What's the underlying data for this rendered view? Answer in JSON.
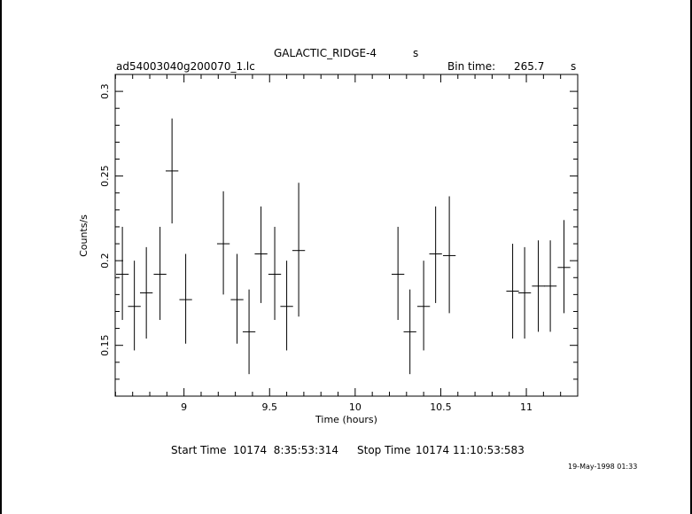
{
  "header": {
    "object_name": "GALACTIC_RIDGE-4",
    "object_suffix": "s",
    "file_name": "ad54003040g200070_1.lc",
    "bin_label": "Bin time:",
    "bin_value": "265.7",
    "bin_unit": "s"
  },
  "footer": {
    "start_label": "Start Time",
    "start_value": "10174  8:35:53:314",
    "stop_label": "Stop Time",
    "stop_value": "10174 11:10:53:583",
    "timestamp": "19-May-1998 01:33"
  },
  "chart_data": {
    "type": "scatter",
    "title": "GALACTIC_RIDGE-4",
    "xlabel": "Time (hours)",
    "ylabel": "Counts/s",
    "xlim": [
      8.598,
      11.3
    ],
    "ylim": [
      0.12,
      0.31
    ],
    "x_ticks": [
      "9",
      "9.5",
      "10",
      "10.5",
      "11"
    ],
    "y_ticks": [
      "0.15",
      "0.2",
      "0.25",
      "0.3"
    ],
    "grid": false,
    "legend": "none",
    "points": [
      {
        "x": 8.64,
        "xerr": 0.037,
        "y": 0.192,
        "ylo": 0.165,
        "yhi": 0.22
      },
      {
        "x": 8.71,
        "xerr": 0.037,
        "y": 0.173,
        "ylo": 0.147,
        "yhi": 0.2
      },
      {
        "x": 8.78,
        "xerr": 0.037,
        "y": 0.181,
        "ylo": 0.154,
        "yhi": 0.208
      },
      {
        "x": 8.86,
        "xerr": 0.037,
        "y": 0.192,
        "ylo": 0.165,
        "yhi": 0.22
      },
      {
        "x": 8.93,
        "xerr": 0.037,
        "y": 0.253,
        "ylo": 0.222,
        "yhi": 0.284
      },
      {
        "x": 9.01,
        "xerr": 0.037,
        "y": 0.177,
        "ylo": 0.151,
        "yhi": 0.204
      },
      {
        "x": 9.23,
        "xerr": 0.037,
        "y": 0.21,
        "ylo": 0.18,
        "yhi": 0.241
      },
      {
        "x": 9.31,
        "xerr": 0.037,
        "y": 0.177,
        "ylo": 0.151,
        "yhi": 0.204
      },
      {
        "x": 9.38,
        "xerr": 0.037,
        "y": 0.158,
        "ylo": 0.133,
        "yhi": 0.183
      },
      {
        "x": 9.45,
        "xerr": 0.037,
        "y": 0.204,
        "ylo": 0.175,
        "yhi": 0.232
      },
      {
        "x": 9.53,
        "xerr": 0.037,
        "y": 0.192,
        "ylo": 0.165,
        "yhi": 0.22
      },
      {
        "x": 9.6,
        "xerr": 0.037,
        "y": 0.173,
        "ylo": 0.147,
        "yhi": 0.2
      },
      {
        "x": 9.67,
        "xerr": 0.037,
        "y": 0.206,
        "ylo": 0.167,
        "yhi": 0.246
      },
      {
        "x": 10.25,
        "xerr": 0.037,
        "y": 0.192,
        "ylo": 0.165,
        "yhi": 0.22
      },
      {
        "x": 10.32,
        "xerr": 0.037,
        "y": 0.158,
        "ylo": 0.133,
        "yhi": 0.183
      },
      {
        "x": 10.4,
        "xerr": 0.037,
        "y": 0.173,
        "ylo": 0.147,
        "yhi": 0.2
      },
      {
        "x": 10.47,
        "xerr": 0.037,
        "y": 0.204,
        "ylo": 0.175,
        "yhi": 0.232
      },
      {
        "x": 10.55,
        "xerr": 0.037,
        "y": 0.203,
        "ylo": 0.169,
        "yhi": 0.238
      },
      {
        "x": 10.92,
        "xerr": 0.037,
        "y": 0.182,
        "ylo": 0.154,
        "yhi": 0.21
      },
      {
        "x": 10.99,
        "xerr": 0.037,
        "y": 0.181,
        "ylo": 0.154,
        "yhi": 0.208
      },
      {
        "x": 11.07,
        "xerr": 0.037,
        "y": 0.185,
        "ylo": 0.158,
        "yhi": 0.212
      },
      {
        "x": 11.14,
        "xerr": 0.037,
        "y": 0.185,
        "ylo": 0.158,
        "yhi": 0.212
      },
      {
        "x": 11.22,
        "xerr": 0.037,
        "y": 0.196,
        "ylo": 0.169,
        "yhi": 0.224
      }
    ]
  }
}
